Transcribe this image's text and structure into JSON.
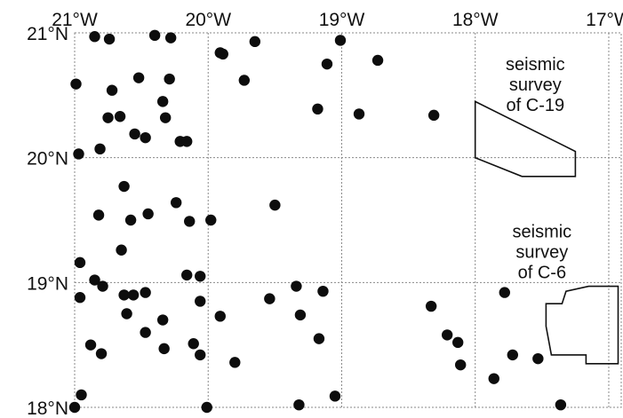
{
  "map": {
    "lon_range": [
      -21.0,
      -16.9
    ],
    "lat_range": [
      18.0,
      21.0
    ],
    "x_ticks": [
      {
        "value": -21,
        "label": "21°W"
      },
      {
        "value": -20,
        "label": "20°W"
      },
      {
        "value": -19,
        "label": "19°W"
      },
      {
        "value": -18,
        "label": "18°W"
      },
      {
        "value": -17,
        "label": "17°W"
      }
    ],
    "y_ticks": [
      {
        "value": 21,
        "label": "21°N"
      },
      {
        "value": 20,
        "label": "20°N"
      },
      {
        "value": 19,
        "label": "19°N"
      },
      {
        "value": 18,
        "label": "18°N"
      }
    ],
    "grid": true,
    "colors": {
      "sites": "#0d0d0d",
      "outline": "#111111",
      "grid": "#8a8a8a"
    }
  },
  "sites": [
    [
      -20.85,
      20.97
    ],
    [
      -20.74,
      20.95
    ],
    [
      -20.4,
      20.98
    ],
    [
      -20.28,
      20.96
    ],
    [
      -19.65,
      20.93
    ],
    [
      -19.89,
      20.83
    ],
    [
      -19.91,
      20.84
    ],
    [
      -20.99,
      20.59
    ],
    [
      -20.72,
      20.54
    ],
    [
      -20.52,
      20.64
    ],
    [
      -20.29,
      20.63
    ],
    [
      -19.73,
      20.62
    ],
    [
      -19.01,
      20.94
    ],
    [
      -19.11,
      20.75
    ],
    [
      -18.73,
      20.78
    ],
    [
      -19.18,
      20.39
    ],
    [
      -18.87,
      20.35
    ],
    [
      -20.34,
      20.45
    ],
    [
      -20.32,
      20.32
    ],
    [
      -20.75,
      20.32
    ],
    [
      -20.66,
      20.33
    ],
    [
      -20.55,
      20.19
    ],
    [
      -20.47,
      20.16
    ],
    [
      -20.21,
      20.13
    ],
    [
      -20.16,
      20.13
    ],
    [
      -20.81,
      20.07
    ],
    [
      -20.97,
      20.03
    ],
    [
      -20.63,
      19.77
    ],
    [
      -20.45,
      19.55
    ],
    [
      -20.58,
      19.5
    ],
    [
      -20.82,
      19.54
    ],
    [
      -20.24,
      19.64
    ],
    [
      -20.14,
      19.49
    ],
    [
      -19.98,
      19.5
    ],
    [
      -19.5,
      19.62
    ],
    [
      -20.65,
      19.26
    ],
    [
      -20.96,
      19.16
    ],
    [
      -20.85,
      19.02
    ],
    [
      -20.79,
      18.97
    ],
    [
      -20.63,
      18.9
    ],
    [
      -20.56,
      18.9
    ],
    [
      -20.47,
      18.92
    ],
    [
      -20.16,
      19.06
    ],
    [
      -20.06,
      19.05
    ],
    [
      -20.96,
      18.88
    ],
    [
      -20.06,
      18.85
    ],
    [
      -19.54,
      18.87
    ],
    [
      -19.34,
      18.97
    ],
    [
      -19.14,
      18.93
    ],
    [
      -20.61,
      18.75
    ],
    [
      -20.34,
      18.7
    ],
    [
      -19.91,
      18.73
    ],
    [
      -19.31,
      18.74
    ],
    [
      -20.47,
      18.6
    ],
    [
      -20.11,
      18.51
    ],
    [
      -20.06,
      18.42
    ],
    [
      -19.17,
      18.55
    ],
    [
      -20.88,
      18.5
    ],
    [
      -20.33,
      18.47
    ],
    [
      -20.8,
      18.43
    ],
    [
      -19.8,
      18.36
    ],
    [
      -19.32,
      18.02
    ],
    [
      -19.05,
      18.09
    ],
    [
      -20.01,
      18.0
    ],
    [
      -20.95,
      18.1
    ],
    [
      -21.0,
      18.0
    ],
    [
      -18.33,
      18.81
    ],
    [
      -18.21,
      18.58
    ],
    [
      -18.13,
      18.52
    ],
    [
      -18.11,
      18.34
    ],
    [
      -17.78,
      18.92
    ],
    [
      -17.72,
      18.42
    ],
    [
      -17.53,
      18.39
    ],
    [
      -17.36,
      18.02
    ],
    [
      -17.86,
      18.23
    ],
    [
      -18.31,
      20.34
    ]
  ],
  "surveys": [
    {
      "name": "C-19",
      "label_lines": [
        "seismic",
        "survey",
        "of C-19"
      ],
      "polygon": [
        [
          -18.0,
          20.45
        ],
        [
          -17.25,
          20.05
        ],
        [
          -17.25,
          19.85
        ],
        [
          -17.65,
          19.85
        ],
        [
          -18.0,
          20.0
        ]
      ],
      "label_at": [
        -17.55,
        20.7
      ]
    },
    {
      "name": "C-6",
      "label_lines": [
        "seismic",
        "survey",
        "of C-6"
      ],
      "polygon": [
        [
          -17.15,
          18.97
        ],
        [
          -16.93,
          18.97
        ],
        [
          -16.93,
          18.35
        ],
        [
          -17.17,
          18.35
        ],
        [
          -17.17,
          18.42
        ],
        [
          -17.43,
          18.42
        ],
        [
          -17.47,
          18.65
        ],
        [
          -17.47,
          18.83
        ],
        [
          -17.35,
          18.83
        ],
        [
          -17.32,
          18.93
        ]
      ],
      "label_at": [
        -17.5,
        19.36
      ]
    }
  ]
}
